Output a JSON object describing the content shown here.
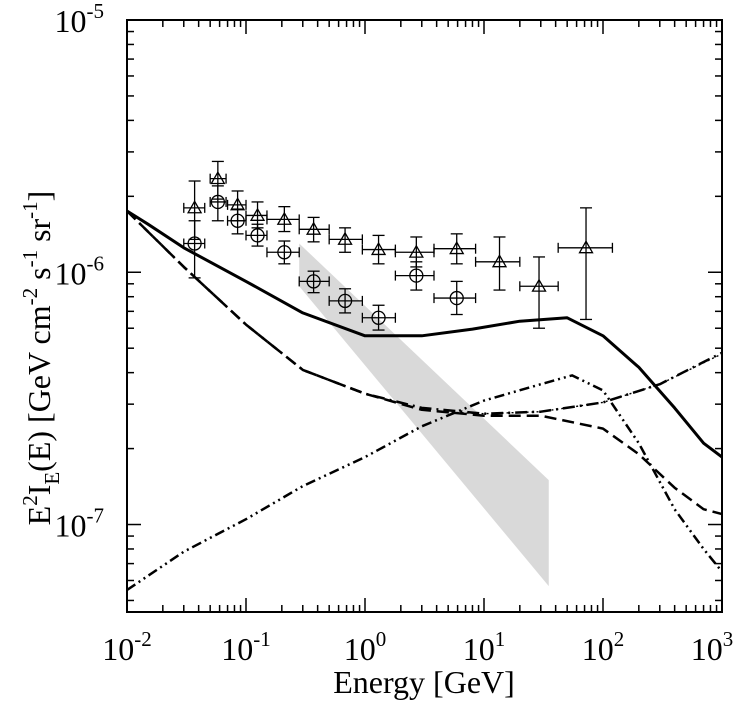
{
  "chart_data": {
    "type": "line",
    "xscale": "log",
    "yscale": "log",
    "xlim": [
      0.01,
      1000
    ],
    "ylim": [
      4.5e-08,
      1e-05
    ],
    "xlabel": "Energy [GeV]",
    "ylabel": {
      "E": "E",
      "E2": "2",
      "I": "I",
      "Esub": "E",
      "rest1": "(E) [GeV cm",
      "m2": "-2",
      "s": " s",
      "m1a": "-1",
      "sr": " sr",
      "m1b": "-1",
      "close": "]"
    },
    "xticks": [
      {
        "value": 0.01,
        "base": "10",
        "exp": "-2"
      },
      {
        "value": 0.1,
        "base": "10",
        "exp": "-1"
      },
      {
        "value": 1,
        "base": "10",
        "exp": "0"
      },
      {
        "value": 10,
        "base": "10",
        "exp": "1"
      },
      {
        "value": 100,
        "base": "10",
        "exp": "2"
      },
      {
        "value": 1000,
        "base": "10",
        "exp": "3"
      }
    ],
    "yticks": [
      {
        "value": 1e-07,
        "base": "10",
        "exp": "-7"
      },
      {
        "value": 1e-06,
        "base": "10",
        "exp": "-6"
      },
      {
        "value": 1e-05,
        "base": "10",
        "exp": "-5"
      }
    ],
    "grid": false,
    "legend": "none",
    "series": [
      {
        "style": "solid",
        "points": [
          [
            0.01,
            1.75e-06
          ],
          [
            0.015,
            1.55e-06
          ],
          [
            0.03,
            1.25e-06
          ],
          [
            0.1,
            9.2e-07
          ],
          [
            0.3,
            6.9e-07
          ],
          [
            1,
            5.6e-07
          ],
          [
            3,
            5.6e-07
          ],
          [
            8,
            5.95e-07
          ],
          [
            20,
            6.4e-07
          ],
          [
            50,
            6.6e-07
          ],
          [
            100,
            5.6e-07
          ],
          [
            200,
            4.2e-07
          ],
          [
            400,
            2.9e-07
          ],
          [
            700,
            2.1e-07
          ],
          [
            1000,
            1.85e-07
          ]
        ]
      },
      {
        "style": "dash-dot",
        "points": [
          [
            0.01,
            1.75e-06
          ],
          [
            0.03,
            1.05e-06
          ],
          [
            0.1,
            6.2e-07
          ],
          [
            0.3,
            4.1e-07
          ],
          [
            1,
            3.3e-07
          ],
          [
            3,
            2.9e-07
          ],
          [
            10,
            2.75e-07
          ],
          [
            30,
            2.8e-07
          ],
          [
            100,
            3.05e-07
          ],
          [
            300,
            3.6e-07
          ],
          [
            1000,
            4.8e-07
          ]
        ]
      },
      {
        "style": "dashed",
        "points": [
          [
            0.01,
            1.75e-06
          ],
          [
            0.03,
            1.05e-06
          ],
          [
            0.1,
            6.2e-07
          ],
          [
            0.3,
            4.1e-07
          ],
          [
            1,
            3.3e-07
          ],
          [
            3,
            2.85e-07
          ],
          [
            10,
            2.7e-07
          ],
          [
            30,
            2.7e-07
          ],
          [
            100,
            2.4e-07
          ],
          [
            200,
            1.9e-07
          ],
          [
            400,
            1.4e-07
          ],
          [
            700,
            1.15e-07
          ],
          [
            1000,
            1.1e-07
          ]
        ]
      },
      {
        "style": "dash-dot-dot",
        "points": [
          [
            0.01,
            5.5e-08
          ],
          [
            0.03,
            7.8e-08
          ],
          [
            0.1,
            1.05e-07
          ],
          [
            0.3,
            1.42e-07
          ],
          [
            1,
            1.85e-07
          ],
          [
            3,
            2.45e-07
          ],
          [
            10,
            3.1e-07
          ],
          [
            30,
            3.6e-07
          ],
          [
            55,
            3.9e-07
          ],
          [
            100,
            3.4e-07
          ],
          [
            200,
            2.1e-07
          ],
          [
            400,
            1.15e-07
          ],
          [
            700,
            8e-08
          ],
          [
            1000,
            6.5e-08
          ]
        ]
      },
      {
        "style": "dotted",
        "points": [
          [
            4,
            2.8e-07
          ],
          [
            10,
            2.75e-07
          ],
          [
            30,
            2.8e-07
          ],
          [
            100,
            3.05e-07
          ],
          [
            300,
            3.6e-07
          ],
          [
            1000,
            4.75e-07
          ]
        ]
      }
    ],
    "band": {
      "color": "#d9d9d9",
      "upper": [
        [
          0.28,
          1.3e-06
        ],
        [
          35,
          1.5e-07
        ]
      ],
      "lower": [
        [
          0.28,
          8.8e-07
        ],
        [
          35,
          5.7e-08
        ]
      ]
    },
    "triangles": [
      {
        "x": 0.037,
        "y": 1.8e-06,
        "xlo": 0.03,
        "xhi": 0.045,
        "ylo": 1.35e-06,
        "yhi": 2.3e-06
      },
      {
        "x": 0.058,
        "y": 2.35e-06,
        "xlo": 0.05,
        "xhi": 0.068,
        "ylo": 1.95e-06,
        "yhi": 2.75e-06
      },
      {
        "x": 0.085,
        "y": 1.85e-06,
        "xlo": 0.07,
        "xhi": 0.1,
        "ylo": 1.6e-06,
        "yhi": 2.1e-06
      },
      {
        "x": 0.125,
        "y": 1.68e-06,
        "xlo": 0.1,
        "xhi": 0.15,
        "ylo": 1.5e-06,
        "yhi": 1.9e-06
      },
      {
        "x": 0.21,
        "y": 1.62e-06,
        "xlo": 0.15,
        "xhi": 0.28,
        "ylo": 1.45e-06,
        "yhi": 1.82e-06
      },
      {
        "x": 0.37,
        "y": 1.48e-06,
        "xlo": 0.28,
        "xhi": 0.5,
        "ylo": 1.32e-06,
        "yhi": 1.65e-06
      },
      {
        "x": 0.68,
        "y": 1.35e-06,
        "xlo": 0.5,
        "xhi": 0.95,
        "ylo": 1.2e-06,
        "yhi": 1.5e-06
      },
      {
        "x": 1.3,
        "y": 1.23e-06,
        "xlo": 0.95,
        "xhi": 1.8,
        "ylo": 1.08e-06,
        "yhi": 1.4e-06
      },
      {
        "x": 2.7,
        "y": 1.2e-06,
        "xlo": 1.8,
        "xhi": 3.8,
        "ylo": 1.05e-06,
        "yhi": 1.38e-06
      },
      {
        "x": 5.9,
        "y": 1.24e-06,
        "xlo": 3.8,
        "xhi": 8.5,
        "ylo": 1.08e-06,
        "yhi": 1.42e-06
      },
      {
        "x": 13.5,
        "y": 1.1e-06,
        "xlo": 8.5,
        "xhi": 20,
        "ylo": 8.5e-07,
        "yhi": 1.38e-06
      },
      {
        "x": 29,
        "y": 8.8e-07,
        "xlo": 20,
        "xhi": 42,
        "ylo": 6e-07,
        "yhi": 1.15e-06
      },
      {
        "x": 72,
        "y": 1.25e-06,
        "xlo": 42,
        "xhi": 120,
        "ylo": 6.5e-07,
        "yhi": 1.8e-06
      }
    ],
    "circles": [
      {
        "x": 0.037,
        "y": 1.3e-06,
        "xlo": 0.03,
        "xhi": 0.045,
        "ylo": 9.5e-07,
        "yhi": 1.6e-06
      },
      {
        "x": 0.058,
        "y": 1.9e-06,
        "xlo": 0.05,
        "xhi": 0.068,
        "ylo": 1.6e-06,
        "yhi": 2.2e-06
      },
      {
        "x": 0.085,
        "y": 1.6e-06,
        "xlo": 0.07,
        "xhi": 0.1,
        "ylo": 1.42e-06,
        "yhi": 1.78e-06
      },
      {
        "x": 0.125,
        "y": 1.4e-06,
        "xlo": 0.1,
        "xhi": 0.15,
        "ylo": 1.27e-06,
        "yhi": 1.55e-06
      },
      {
        "x": 0.21,
        "y": 1.2e-06,
        "xlo": 0.15,
        "xhi": 0.28,
        "ylo": 1.08e-06,
        "yhi": 1.33e-06
      },
      {
        "x": 0.37,
        "y": 9.2e-07,
        "xlo": 0.28,
        "xhi": 0.5,
        "ylo": 8.3e-07,
        "yhi": 1.01e-06
      },
      {
        "x": 0.68,
        "y": 7.7e-07,
        "xlo": 0.5,
        "xhi": 0.95,
        "ylo": 6.9e-07,
        "yhi": 8.6e-07
      },
      {
        "x": 1.3,
        "y": 6.6e-07,
        "xlo": 0.95,
        "xhi": 1.8,
        "ylo": 5.9e-07,
        "yhi": 7.4e-07
      },
      {
        "x": 2.7,
        "y": 9.7e-07,
        "xlo": 1.8,
        "xhi": 3.8,
        "ylo": 8.5e-07,
        "yhi": 1.1e-06
      },
      {
        "x": 5.9,
        "y": 7.9e-07,
        "xlo": 3.8,
        "xhi": 8.5,
        "ylo": 6.8e-07,
        "yhi": 9.2e-07
      }
    ]
  }
}
